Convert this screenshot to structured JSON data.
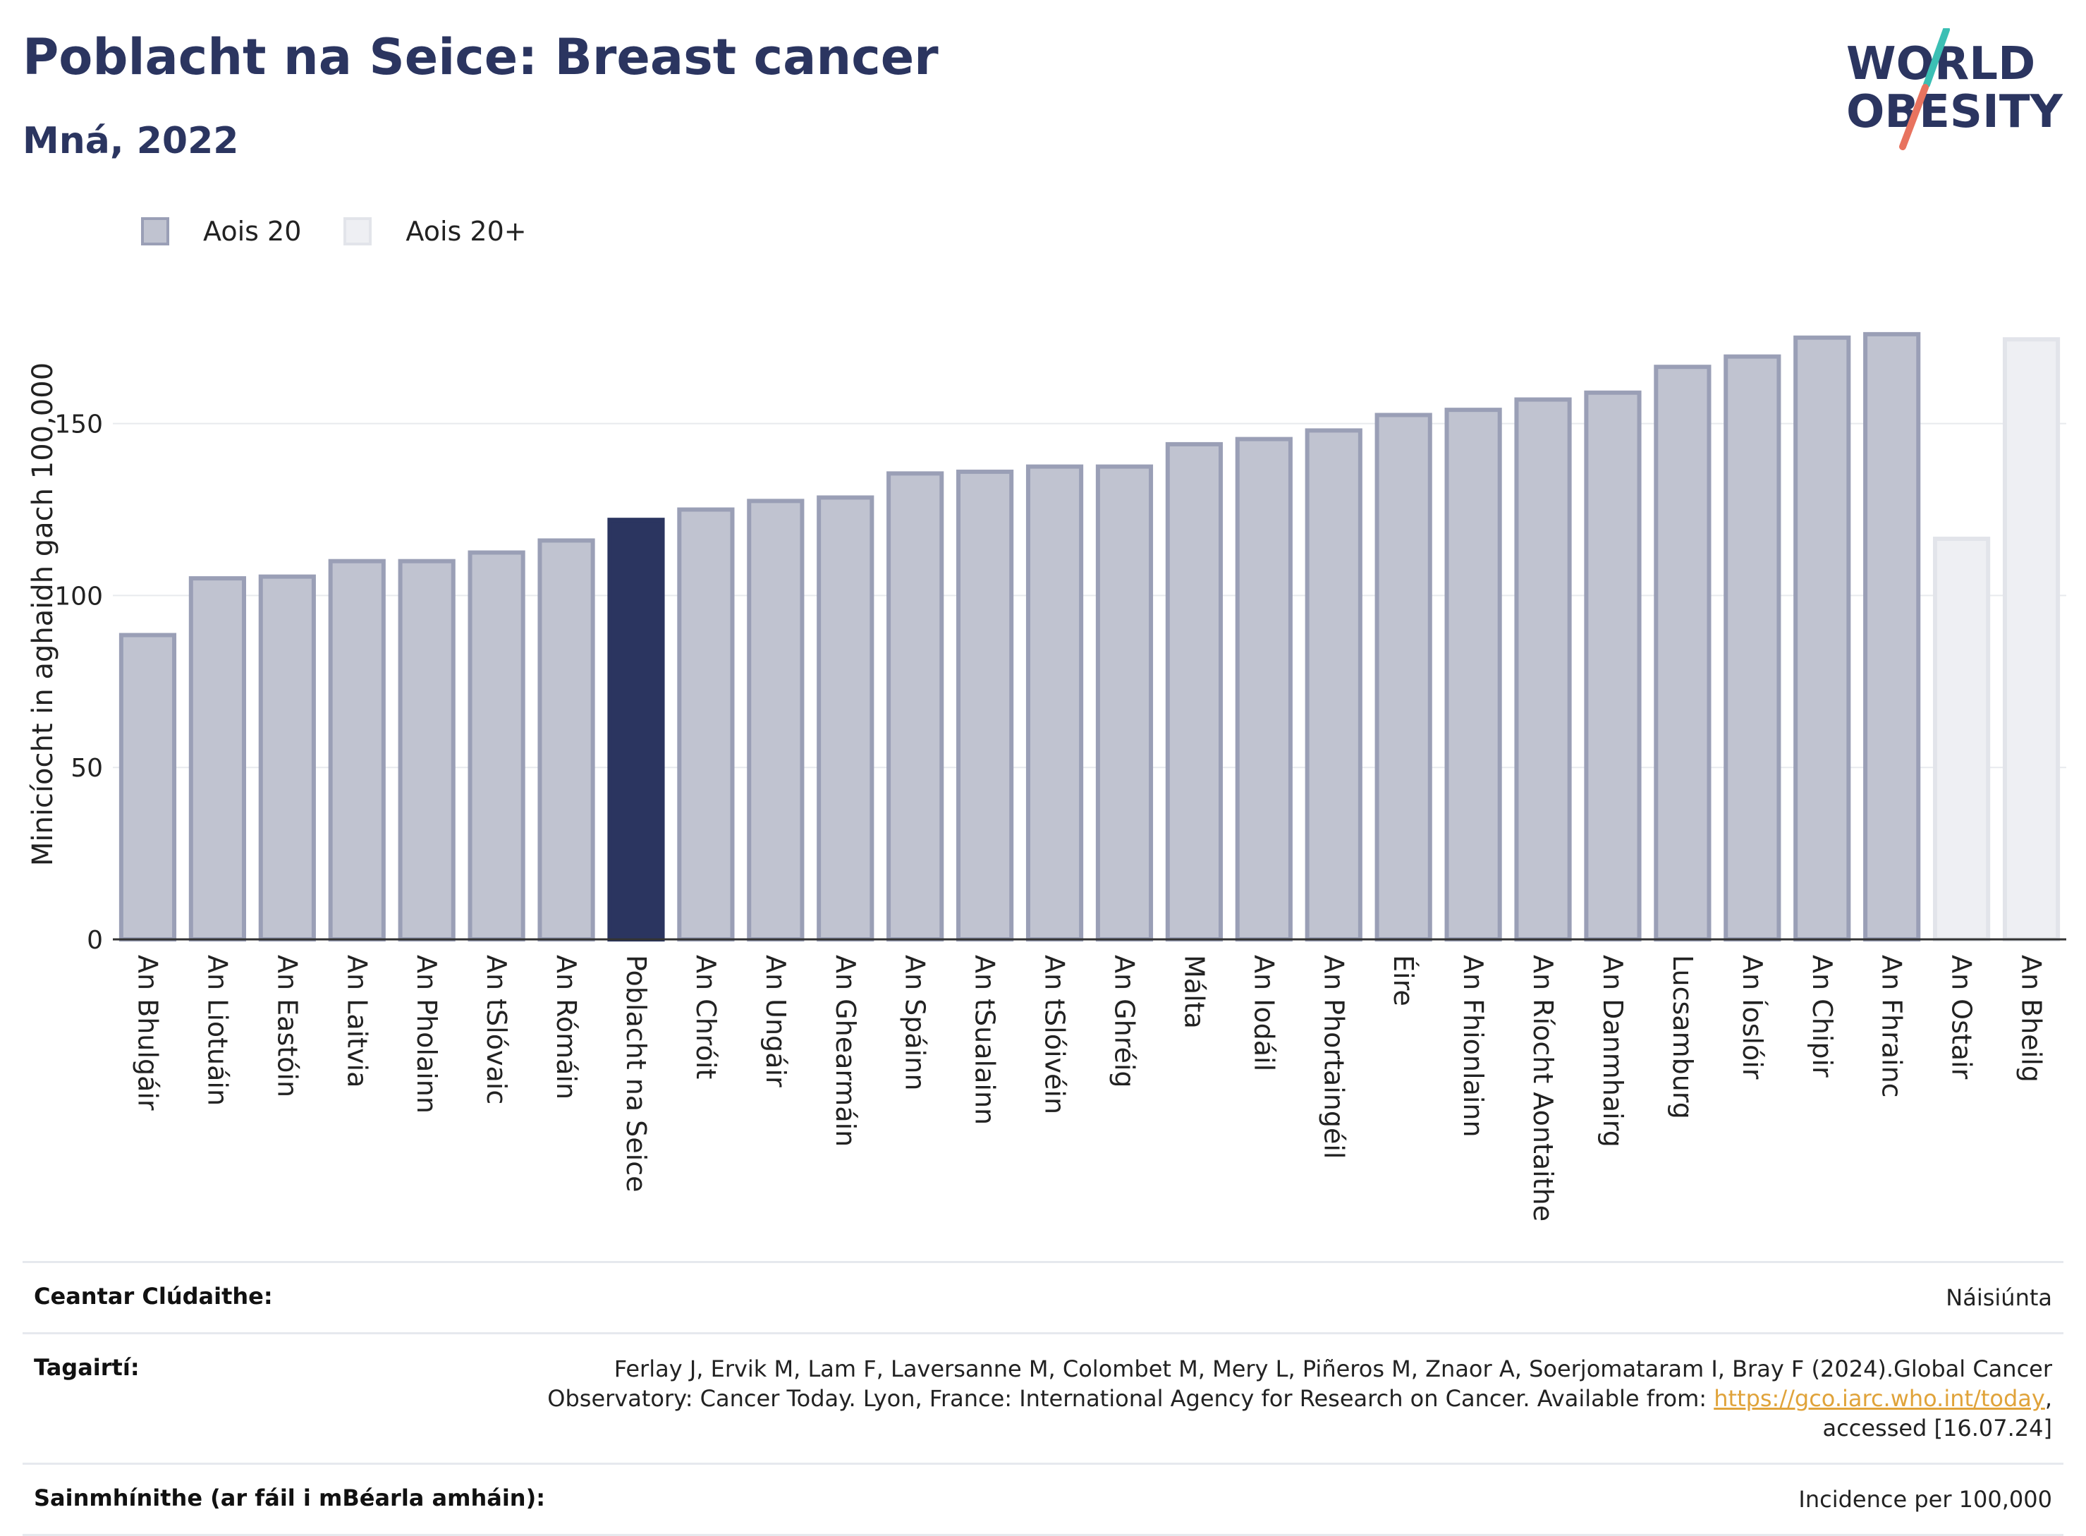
{
  "header": {
    "title": "Poblacht na Seice: Breast cancer",
    "subtitle": "Mná, 2022"
  },
  "logo": {
    "line1": "WORLD",
    "line2": "OBESITY"
  },
  "colors": {
    "highlight": "#2b3560",
    "series1_fill": "#c0c3d0",
    "series1_stroke": "#9a9fb6",
    "series2_fill": "#eeeff3",
    "series2_stroke": "#e2e4ea",
    "logo_teal": "#3bbfb4",
    "logo_coral": "#e8735f"
  },
  "chart_data": {
    "type": "bar",
    "ylabel": "Minicíocht in aghaidh gach 100,000",
    "xlabel": "",
    "ylim": [
      0,
      185
    ],
    "yticks": [
      0,
      50,
      100,
      150
    ],
    "grid": true,
    "legend_position": "top-left",
    "highlight_category": "Poblacht na Seice",
    "series": [
      {
        "name": "Aois 20",
        "key": "s1"
      },
      {
        "name": "Aois 20+",
        "key": "s2"
      }
    ],
    "bars": [
      {
        "category": "An Bhulgáir",
        "value": 88.5,
        "series": "s1"
      },
      {
        "category": "An Liotuáin",
        "value": 105,
        "series": "s1"
      },
      {
        "category": "An Eastóin",
        "value": 105.5,
        "series": "s1"
      },
      {
        "category": "An Laitvia",
        "value": 110,
        "series": "s1"
      },
      {
        "category": "An Pholainn",
        "value": 110,
        "series": "s1"
      },
      {
        "category": "An tSlóvaic",
        "value": 112.5,
        "series": "s1"
      },
      {
        "category": "An Rómáin",
        "value": 116,
        "series": "s1"
      },
      {
        "category": "Poblacht na Seice",
        "value": 122,
        "series": "s1"
      },
      {
        "category": "An Chróit",
        "value": 125,
        "series": "s1"
      },
      {
        "category": "An Ungáir",
        "value": 127.5,
        "series": "s1"
      },
      {
        "category": "An Ghearmáin",
        "value": 128.5,
        "series": "s1"
      },
      {
        "category": "An Spáinn",
        "value": 135.5,
        "series": "s1"
      },
      {
        "category": "An tSualainn",
        "value": 136,
        "series": "s1"
      },
      {
        "category": "An tSlóivéin",
        "value": 137.5,
        "series": "s1"
      },
      {
        "category": "An Ghréig",
        "value": 137.5,
        "series": "s1"
      },
      {
        "category": "Málta",
        "value": 144,
        "series": "s1"
      },
      {
        "category": "An Iodáil",
        "value": 145.5,
        "series": "s1"
      },
      {
        "category": "An Phortaingéil",
        "value": 148,
        "series": "s1"
      },
      {
        "category": "Éire",
        "value": 152.5,
        "series": "s1"
      },
      {
        "category": "An Fhionlainn",
        "value": 154,
        "series": "s1"
      },
      {
        "category": "An Ríocht Aontaithe",
        "value": 157,
        "series": "s1"
      },
      {
        "category": "An Danmhairg",
        "value": 159,
        "series": "s1"
      },
      {
        "category": "Lucsamburg",
        "value": 166.5,
        "series": "s1"
      },
      {
        "category": "An Íoslóir",
        "value": 169.5,
        "series": "s1"
      },
      {
        "category": "An Chipir",
        "value": 175,
        "series": "s1"
      },
      {
        "category": "An Fhrainc",
        "value": 176,
        "series": "s1"
      },
      {
        "category": "An Ostair",
        "value": 116.5,
        "series": "s2"
      },
      {
        "category": "An Bheilg",
        "value": 174.5,
        "series": "s2"
      }
    ]
  },
  "info": {
    "coverage_label": "Ceantar Clúdaithe:",
    "coverage_value": "Náisiúnta",
    "references_label": "Tagairtí:",
    "references_text1": "Ferlay J, Ervik M, Lam F, Laversanne M, Colombet M, Mery L, Piñeros M, Znaor A, Soerjomataram I, Bray F (2024).Global Cancer Observatory: Cancer Today. Lyon, France: International Agency for Research on Cancer. Available from: ",
    "references_link": "https://gco.iarc.who.int/today",
    "references_text2": ", accessed [16.07.24]",
    "definitions_label": "Sainmhínithe (ar fáil i mBéarla amháin):",
    "definitions_value": "Incidence per 100,000"
  }
}
